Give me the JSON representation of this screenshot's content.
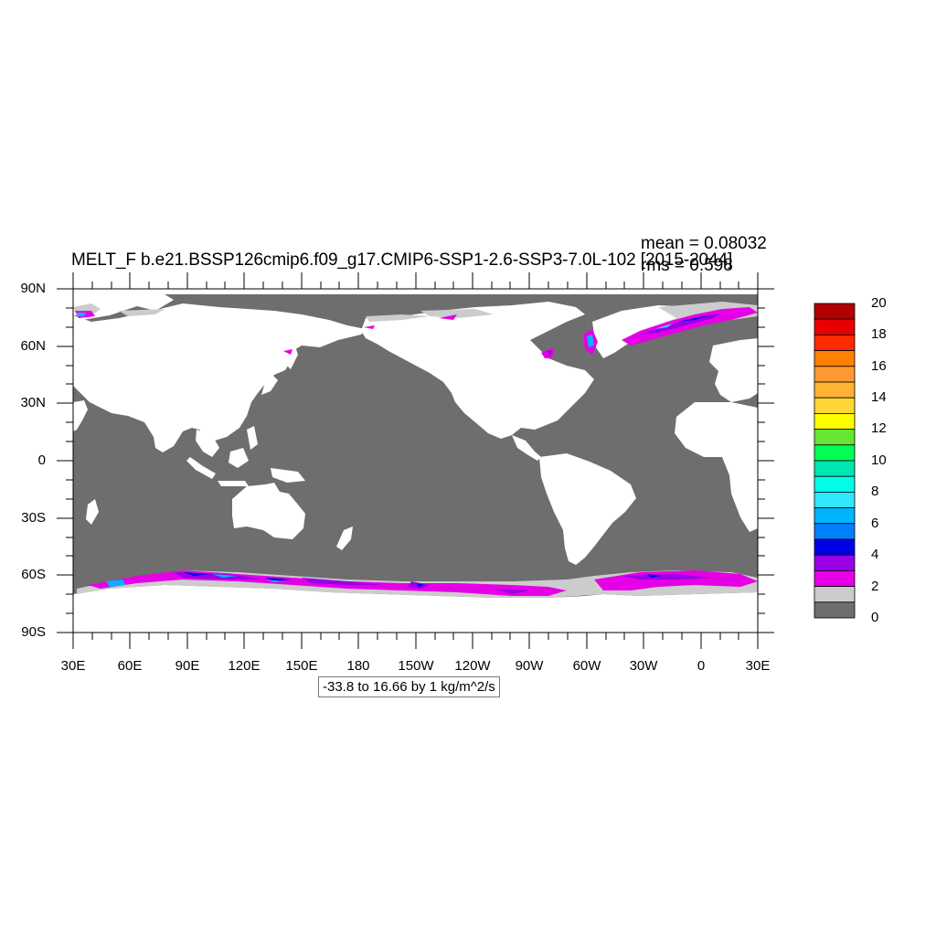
{
  "title": "MELT_F b.e21.BSSP126cmip6.f09_g17.CMIP6-SSP1-2.6-SSP3-7.0L-102 [2015-2044]",
  "stats": {
    "mean": "mean = 0.08032",
    "rms": "rms = 0.598"
  },
  "info_box": "-33.8 to 16.66 by 1 kg/m^2/s",
  "y_ticks": [
    "90N",
    "60N",
    "30N",
    "0",
    "30S",
    "60S",
    "90S"
  ],
  "x_ticks": [
    "30E",
    "60E",
    "90E",
    "120E",
    "150E",
    "180",
    "150W",
    "120W",
    "90W",
    "60W",
    "30W",
    "0",
    "30E"
  ],
  "colorbar": {
    "labels": [
      "20",
      "18",
      "16",
      "14",
      "12",
      "10",
      "8",
      "6",
      "4",
      "2",
      "0"
    ],
    "colors": [
      "#b30000",
      "#e60000",
      "#ff2a00",
      "#ff7f00",
      "#ff9933",
      "#ffb233",
      "#ffd633",
      "#ffff00",
      "#66e633",
      "#00ff55",
      "#00e6b3",
      "#00ffe6",
      "#33e6ff",
      "#00b3ff",
      "#0080ff",
      "#0000e6",
      "#9900e6",
      "#e600e6",
      "#cccccc",
      "#6e6e6e"
    ]
  },
  "map_colors": {
    "ocean": "#6e6e6e",
    "land": "#ffffff",
    "ice_low": "#cccccc",
    "melt_2": "#e600e6",
    "melt_4": "#9900e6",
    "melt_5": "#0000e6",
    "melt_6": "#00b3ff"
  }
}
